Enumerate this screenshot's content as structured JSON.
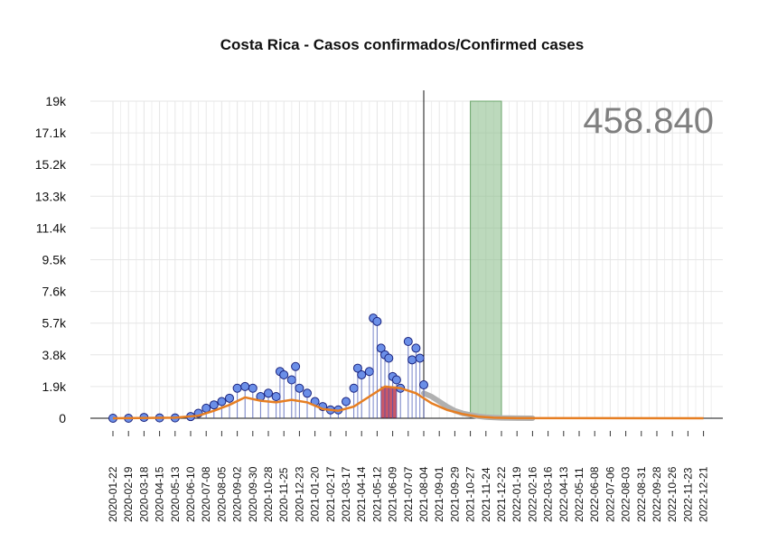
{
  "chart_data": {
    "type": "line",
    "title": "Costa Rica - Casos confirmados/Confirmed cases",
    "total_label": "458.840",
    "y_ticks": [
      "0",
      "1.9k",
      "3.8k",
      "5.7k",
      "7.6k",
      "9.5k",
      "11.4k",
      "13.3k",
      "15.2k",
      "17.1k",
      "19k"
    ],
    "y_tick_values": [
      0,
      1900,
      3800,
      5700,
      7600,
      9500,
      11400,
      13300,
      15200,
      17100,
      19000
    ],
    "ylim": [
      0,
      19000
    ],
    "x_ticks": [
      "2020-01-22",
      "2020-02-19",
      "2020-03-18",
      "2020-04-15",
      "2020-05-13",
      "2020-06-10",
      "2020-07-08",
      "2020-08-05",
      "2020-09-02",
      "2020-09-30",
      "2020-10-28",
      "2020-11-25",
      "2020-12-23",
      "2021-01-20",
      "2021-02-17",
      "2021-03-17",
      "2021-04-14",
      "2021-05-12",
      "2021-06-09",
      "2021-07-07",
      "2021-08-04",
      "2021-09-01",
      "2021-09-29",
      "2021-10-27",
      "2021-11-24",
      "2021-12-22",
      "2022-01-19",
      "2022-02-16",
      "2022-03-16",
      "2022-04-13",
      "2022-05-11",
      "2022-06-08",
      "2022-07-06",
      "2022-08-03",
      "2022-08-31",
      "2022-09-28",
      "2022-10-26",
      "2022-11-23",
      "2022-12-21"
    ],
    "grid": true,
    "current_date_marker": "2021-08-04",
    "shaded_band": {
      "start": "2021-10-27",
      "end": "2021-12-22",
      "color": "#8fbf8f"
    },
    "highlight_band": {
      "start": "2021-05-19",
      "end": "2021-06-16",
      "color": "#c0394d"
    },
    "series": [
      {
        "kind": "daily_points",
        "color": "#3f51b5",
        "points": [
          [
            "2020-01-22",
            0
          ],
          [
            "2020-02-19",
            0
          ],
          [
            "2020-03-18",
            50
          ],
          [
            "2020-04-15",
            20
          ],
          [
            "2020-05-13",
            20
          ],
          [
            "2020-06-10",
            100
          ],
          [
            "2020-06-24",
            300
          ],
          [
            "2020-07-08",
            600
          ],
          [
            "2020-07-22",
            800
          ],
          [
            "2020-08-05",
            1000
          ],
          [
            "2020-08-19",
            1200
          ],
          [
            "2020-09-02",
            1800
          ],
          [
            "2020-09-16",
            1900
          ],
          [
            "2020-09-30",
            1800
          ],
          [
            "2020-10-14",
            1300
          ],
          [
            "2020-10-28",
            1500
          ],
          [
            "2020-11-11",
            1300
          ],
          [
            "2020-11-18",
            2800
          ],
          [
            "2020-11-25",
            2600
          ],
          [
            "2020-12-09",
            2300
          ],
          [
            "2020-12-16",
            3100
          ],
          [
            "2020-12-23",
            1800
          ],
          [
            "2021-01-06",
            1500
          ],
          [
            "2021-01-20",
            1000
          ],
          [
            "2021-02-03",
            700
          ],
          [
            "2021-02-17",
            500
          ],
          [
            "2021-03-03",
            500
          ],
          [
            "2021-03-17",
            1000
          ],
          [
            "2021-03-31",
            1800
          ],
          [
            "2021-04-07",
            3000
          ],
          [
            "2021-04-14",
            2600
          ],
          [
            "2021-04-28",
            2800
          ],
          [
            "2021-05-05",
            6000
          ],
          [
            "2021-05-12",
            5800
          ],
          [
            "2021-05-19",
            4200
          ],
          [
            "2021-05-26",
            3800
          ],
          [
            "2021-06-02",
            3600
          ],
          [
            "2021-06-09",
            2500
          ],
          [
            "2021-06-16",
            2300
          ],
          [
            "2021-06-23",
            1800
          ],
          [
            "2021-07-07",
            4600
          ],
          [
            "2021-07-14",
            3500
          ],
          [
            "2021-07-21",
            4200
          ],
          [
            "2021-07-28",
            3600
          ],
          [
            "2021-08-04",
            2000
          ]
        ]
      },
      {
        "kind": "trend",
        "color": "#e67e22",
        "points": [
          [
            "2020-01-22",
            0
          ],
          [
            "2020-05-13",
            30
          ],
          [
            "2020-06-24",
            150
          ],
          [
            "2020-07-22",
            450
          ],
          [
            "2020-08-19",
            800
          ],
          [
            "2020-09-16",
            1250
          ],
          [
            "2020-10-14",
            1050
          ],
          [
            "2020-11-11",
            950
          ],
          [
            "2020-12-09",
            1100
          ],
          [
            "2021-01-06",
            950
          ],
          [
            "2021-02-03",
            550
          ],
          [
            "2021-03-03",
            450
          ],
          [
            "2021-03-31",
            700
          ],
          [
            "2021-04-28",
            1300
          ],
          [
            "2021-05-26",
            1900
          ],
          [
            "2021-06-23",
            1800
          ],
          [
            "2021-07-21",
            1500
          ],
          [
            "2021-08-18",
            900
          ],
          [
            "2021-09-15",
            500
          ],
          [
            "2021-10-13",
            250
          ],
          [
            "2021-11-10",
            100
          ],
          [
            "2021-12-08",
            30
          ],
          [
            "2022-01-19",
            5
          ],
          [
            "2022-12-21",
            0
          ]
        ]
      },
      {
        "kind": "projection",
        "color": "#b0b0b0",
        "points": [
          [
            "2021-08-04",
            1500
          ],
          [
            "2021-08-18",
            1300
          ],
          [
            "2021-09-01",
            1000
          ],
          [
            "2021-09-15",
            700
          ],
          [
            "2021-09-29",
            450
          ],
          [
            "2021-10-13",
            300
          ],
          [
            "2021-10-27",
            200
          ],
          [
            "2021-11-10",
            120
          ],
          [
            "2021-11-24",
            70
          ],
          [
            "2021-12-22",
            20
          ],
          [
            "2022-01-19",
            5
          ],
          [
            "2022-02-16",
            0
          ]
        ]
      }
    ]
  }
}
